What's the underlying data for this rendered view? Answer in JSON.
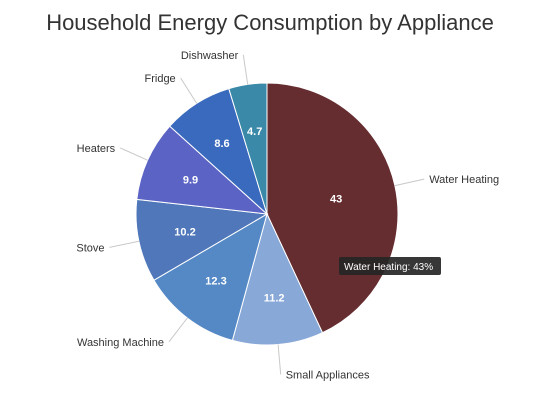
{
  "chart_data": {
    "type": "pie",
    "title": "Household Energy Consumption by Appliance",
    "slices": [
      {
        "label": "Water Heating",
        "value": 43,
        "value_label": "43",
        "color": "#662d30",
        "label_color": "#ffffff"
      },
      {
        "label": "Small Appliances",
        "value": 11.2,
        "value_label": "11.2",
        "color": "#88a8d8",
        "label_color": "#ffffff"
      },
      {
        "label": "Washing Machine",
        "value": 12.3,
        "value_label": "12.3",
        "color": "#5589c6",
        "label_color": "#ffffff"
      },
      {
        "label": "Stove",
        "value": 10.2,
        "value_label": "10.2",
        "color": "#4f77b9",
        "label_color": "#ffffff"
      },
      {
        "label": "Heaters",
        "value": 9.9,
        "value_label": "9.9",
        "color": "#5b63c4",
        "label_color": "#ffffff"
      },
      {
        "label": "Fridge",
        "value": 8.6,
        "value_label": "8.6",
        "color": "#3a6abd",
        "label_color": "#ffffff"
      },
      {
        "label": "Dishwasher",
        "value": 4.7,
        "value_label": "4.7",
        "color": "#3a89a9",
        "label_color": "#ffffff"
      }
    ],
    "start_angle_deg": 0,
    "direction": "clockwise",
    "tooltip": {
      "text": "Water Heating: 43%"
    }
  }
}
